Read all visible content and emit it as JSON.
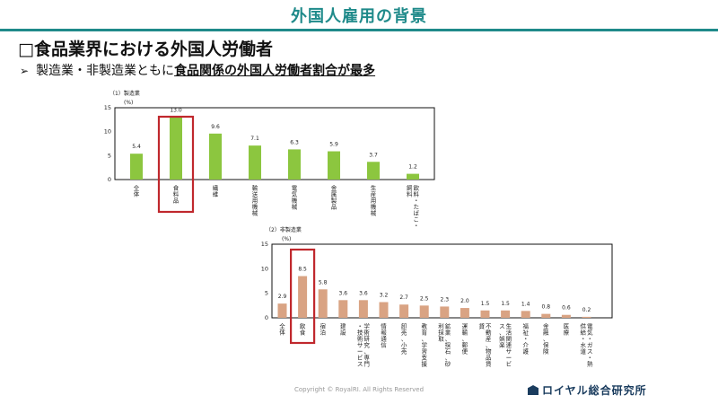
{
  "header": {
    "title": "外国人雇用の背景"
  },
  "heading": "□食品業界における外国人労働者",
  "bullet": {
    "marker": "➢",
    "prefix": "製造業・非製造業ともに",
    "highlight": "食品関係の外国人労働者割合が最多"
  },
  "footer": {
    "copyright": "Copyright © RoyalRI. All Rights Reserved",
    "logo": "ロイヤル総合研究所"
  },
  "colors": {
    "accent": "#1f8a8a",
    "manufacturing_bar": "#8cc63f",
    "nonmanufacturing_bar": "#d9a383",
    "highlight_box": "#c0282d"
  },
  "chart_data": [
    {
      "type": "bar",
      "title": "（1）製造業",
      "ylabel": "(%)",
      "ylim": [
        0,
        15
      ],
      "yticks": [
        0,
        5,
        10,
        15
      ],
      "categories": [
        "全体",
        "食料品",
        "繊維",
        "輸送用機械",
        "電気機械",
        "金属製品",
        "生産用機械",
        "飲料・たばこ・飼料"
      ],
      "values": [
        5.4,
        13.0,
        9.6,
        7.1,
        6.3,
        5.9,
        3.7,
        1.2
      ],
      "value_labels": [
        "5.4",
        "13.0",
        "9.6",
        "7.1",
        "6.3",
        "5.9",
        "3.7",
        "1.2"
      ],
      "highlighted": "食料品"
    },
    {
      "type": "bar",
      "title": "（2）非製造業",
      "ylabel": "(%)",
      "ylim": [
        0,
        15
      ],
      "yticks": [
        0,
        5,
        10,
        15
      ],
      "categories": [
        "全体",
        "飲食",
        "宿泊",
        "建設",
        "学術研究、専門・技術サービス",
        "情報通信",
        "卸売、小売",
        "教育、学習支援",
        "鉱業、採石、砂利採取",
        "運輸、郵便",
        "不動産、物品賃貸",
        "生活関連サービス、娯楽",
        "福祉・介護",
        "金融、保険",
        "医療",
        "電気・ガス・熱供給・水道"
      ],
      "values": [
        2.9,
        8.5,
        5.8,
        3.6,
        3.6,
        3.2,
        2.7,
        2.5,
        2.3,
        2.0,
        1.5,
        1.5,
        1.4,
        0.8,
        0.6,
        0.2
      ],
      "value_labels": [
        "2.9",
        "8.5",
        "5.8",
        "3.6",
        "3.6",
        "3.2",
        "2.7",
        "2.5",
        "2.3",
        "2.0",
        "1.5",
        "1.5",
        "1.4",
        "0.8",
        "0.6",
        "0.2"
      ],
      "highlighted": "飲食"
    }
  ]
}
